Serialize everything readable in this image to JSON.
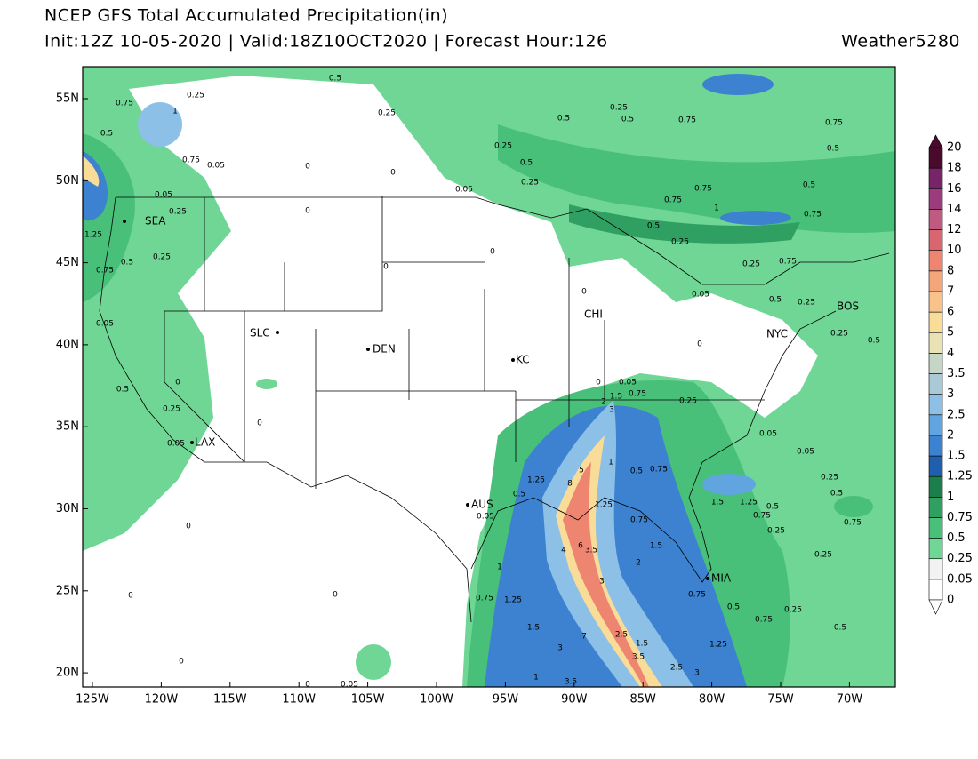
{
  "header": {
    "title": "NCEP GFS Total Accumulated Precipitation(in)",
    "subtitle": "Init:12Z 10-05-2020 | Valid:18Z10OCT2020 | Forecast Hour:126",
    "credit": "Weather5280"
  },
  "map": {
    "lat_labels": [
      "55N",
      "50N",
      "45N",
      "40N",
      "35N",
      "30N",
      "25N",
      "20N"
    ],
    "lon_labels": [
      "125W",
      "120W",
      "115W",
      "110W",
      "105W",
      "100W",
      "95W",
      "90W",
      "85W",
      "80W",
      "75W",
      "70W"
    ],
    "cities": [
      "SEA",
      "SLC",
      "DEN",
      "KC",
      "CHI",
      "NYC",
      "BOS",
      "LAX",
      "AUS",
      "MIA"
    ],
    "contour_labels": [
      "0.5",
      "0.25",
      "0.75",
      "1",
      "0.5",
      "0.75",
      "0.05",
      "0",
      "0",
      "0.25",
      "0.5",
      "0.25",
      "0.5",
      "0.75",
      "0.75",
      "0.5",
      "0.25",
      "0.5",
      "0.25",
      "0.05",
      "0.75",
      "0.75",
      "1",
      "0.5",
      "0.75",
      "0",
      "0.05",
      "0.25",
      "1.25",
      "0.5",
      "0.25",
      "0.75",
      "0",
      "0",
      "0.5",
      "0.25",
      "0.25",
      "0.75",
      "0.5",
      "0.25",
      "0.05",
      "0",
      "0.05",
      "0",
      "0.5",
      "0.25",
      "0",
      "0.05",
      "0",
      "0.25",
      "0.5",
      "0",
      "0.05",
      "0.75",
      "1.5",
      "2",
      "3",
      "0.25",
      "0.05",
      "0.05",
      "1.25",
      "5",
      "8",
      "1",
      "0.5",
      "0.75",
      "0.5",
      "0.05",
      "1.25",
      "0.75",
      "1.5",
      "1.25",
      "0.5",
      "0.75",
      "0.25",
      "0.25",
      "0.5",
      "0.75",
      "4",
      "6",
      "3.5",
      "1.5",
      "2",
      "3",
      "1",
      "0.25",
      "0",
      "0",
      "0",
      "0.75",
      "1.25",
      "0.75",
      "0.5",
      "0.25",
      "0.75",
      "0.5",
      "1.5",
      "7",
      "2.5",
      "1.5",
      "1.25",
      "3",
      "3.5",
      "2.5",
      "3",
      "0",
      "1",
      "3.5",
      "0",
      "0.05"
    ]
  },
  "colorbar": {
    "levels": [
      0,
      0.05,
      0.25,
      0.5,
      0.75,
      1,
      1.25,
      1.5,
      2,
      2.5,
      3,
      3.5,
      4,
      5,
      6,
      7,
      8,
      10,
      12,
      14,
      16,
      18,
      20
    ],
    "colors": [
      "#ffffff",
      "#f2f2f2",
      "#6fd695",
      "#48c07a",
      "#2fa062",
      "#1b7f4c",
      "#1f5fae",
      "#3c82d0",
      "#61a5e0",
      "#8cc0e6",
      "#a9c9d6",
      "#c6d6c4",
      "#e8e2b4",
      "#f8dc98",
      "#f8c28a",
      "#f5a57a",
      "#ee8570",
      "#d9666e",
      "#c05a80",
      "#9c3c7c",
      "#782468",
      "#4a0a2c"
    ]
  }
}
